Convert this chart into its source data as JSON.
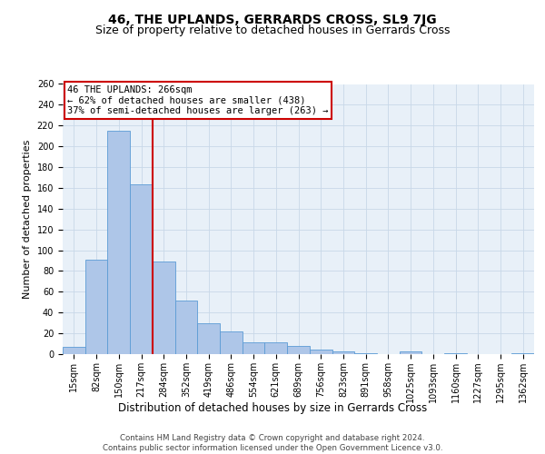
{
  "title": "46, THE UPLANDS, GERRARDS CROSS, SL9 7JG",
  "subtitle": "Size of property relative to detached houses in Gerrards Cross",
  "xlabel": "Distribution of detached houses by size in Gerrards Cross",
  "ylabel": "Number of detached properties",
  "bar_labels": [
    "15sqm",
    "82sqm",
    "150sqm",
    "217sqm",
    "284sqm",
    "352sqm",
    "419sqm",
    "486sqm",
    "554sqm",
    "621sqm",
    "689sqm",
    "756sqm",
    "823sqm",
    "891sqm",
    "958sqm",
    "1025sqm",
    "1093sqm",
    "1160sqm",
    "1227sqm",
    "1295sqm",
    "1362sqm"
  ],
  "bar_values": [
    7,
    91,
    215,
    163,
    89,
    52,
    30,
    22,
    11,
    11,
    8,
    4,
    3,
    1,
    0,
    3,
    0,
    1,
    0,
    0,
    1
  ],
  "bar_color": "#aec6e8",
  "bar_edge_color": "#5b9bd5",
  "grid_color": "#c8d8e8",
  "background_color": "#e8f0f8",
  "vline_x": 3.5,
  "vline_color": "#cc0000",
  "annotation_text": "46 THE UPLANDS: 266sqm\n← 62% of detached houses are smaller (438)\n37% of semi-detached houses are larger (263) →",
  "annotation_box_color": "#ffffff",
  "annotation_box_edge": "#cc0000",
  "ylim": [
    0,
    260
  ],
  "yticks": [
    0,
    20,
    40,
    60,
    80,
    100,
    120,
    140,
    160,
    180,
    200,
    220,
    240,
    260
  ],
  "footer": "Contains HM Land Registry data © Crown copyright and database right 2024.\nContains public sector information licensed under the Open Government Licence v3.0.",
  "title_fontsize": 10,
  "subtitle_fontsize": 9,
  "tick_fontsize": 7,
  "ylabel_fontsize": 8,
  "xlabel_fontsize": 8.5,
  "annotation_fontsize": 7.5,
  "footer_fontsize": 6.2
}
